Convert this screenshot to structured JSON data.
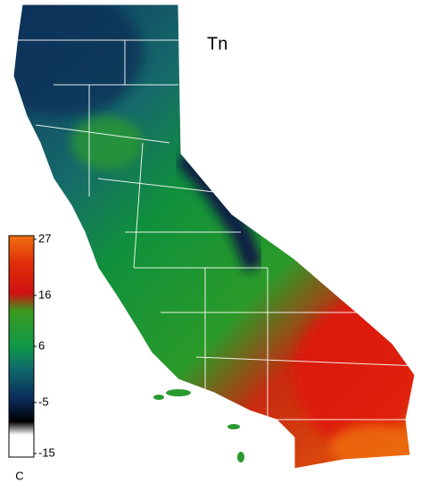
{
  "map": {
    "title": "Tn",
    "colorbar": {
      "unit": "C",
      "lim": [
        -15,
        27
      ],
      "ticks": [
        27,
        16,
        6,
        -5,
        -15
      ]
    }
  }
}
